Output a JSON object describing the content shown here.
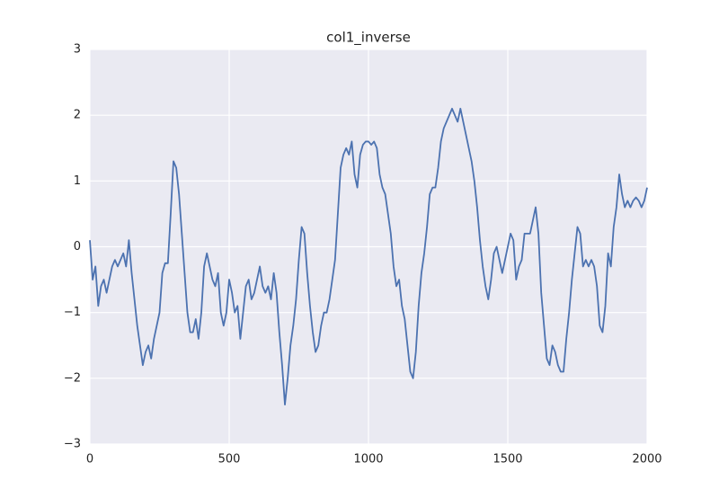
{
  "chart_data": {
    "type": "line",
    "title": "col1_inverse",
    "x": [
      0,
      10,
      20,
      30,
      40,
      50,
      60,
      70,
      80,
      90,
      100,
      110,
      120,
      130,
      140,
      150,
      160,
      170,
      180,
      190,
      200,
      210,
      220,
      230,
      240,
      250,
      260,
      270,
      280,
      290,
      300,
      310,
      320,
      330,
      340,
      350,
      360,
      370,
      380,
      390,
      400,
      410,
      420,
      430,
      440,
      450,
      460,
      470,
      480,
      490,
      500,
      510,
      520,
      530,
      540,
      550,
      560,
      570,
      580,
      590,
      600,
      610,
      620,
      630,
      640,
      650,
      660,
      670,
      680,
      690,
      700,
      710,
      720,
      730,
      740,
      750,
      760,
      770,
      780,
      790,
      800,
      810,
      820,
      830,
      840,
      850,
      860,
      870,
      880,
      890,
      900,
      910,
      920,
      930,
      940,
      950,
      960,
      970,
      980,
      990,
      1000,
      1010,
      1020,
      1030,
      1040,
      1050,
      1060,
      1070,
      1080,
      1090,
      1100,
      1110,
      1120,
      1130,
      1140,
      1150,
      1160,
      1170,
      1180,
      1190,
      1200,
      1210,
      1220,
      1230,
      1240,
      1250,
      1260,
      1270,
      1280,
      1290,
      1300,
      1310,
      1320,
      1330,
      1340,
      1350,
      1360,
      1370,
      1380,
      1390,
      1400,
      1410,
      1420,
      1430,
      1440,
      1450,
      1460,
      1470,
      1480,
      1490,
      1500,
      1510,
      1520,
      1530,
      1540,
      1550,
      1560,
      1570,
      1580,
      1590,
      1600,
      1610,
      1620,
      1630,
      1640,
      1650,
      1660,
      1670,
      1680,
      1690,
      1700,
      1710,
      1720,
      1730,
      1740,
      1750,
      1760,
      1770,
      1780,
      1790,
      1800,
      1810,
      1820,
      1830,
      1840,
      1850,
      1860,
      1870,
      1880,
      1890,
      1900,
      1910,
      1920,
      1930,
      1940,
      1950,
      1960,
      1970,
      1980,
      1990,
      2000
    ],
    "series": [
      {
        "name": "col1_inverse",
        "color": "#4c72b0",
        "values": [
          0.1,
          -0.5,
          -0.3,
          -0.9,
          -0.6,
          -0.5,
          -0.7,
          -0.5,
          -0.3,
          -0.2,
          -0.3,
          -0.2,
          -0.1,
          -0.3,
          0.1,
          -0.4,
          -0.8,
          -1.2,
          -1.5,
          -1.8,
          -1.6,
          -1.5,
          -1.7,
          -1.4,
          -1.2,
          -1.0,
          -0.4,
          -0.25,
          -0.25,
          0.5,
          1.3,
          1.2,
          0.8,
          0.2,
          -0.4,
          -1.0,
          -1.3,
          -1.3,
          -1.1,
          -1.4,
          -1.0,
          -0.3,
          -0.1,
          -0.3,
          -0.5,
          -0.6,
          -0.4,
          -1.0,
          -1.2,
          -1.0,
          -0.5,
          -0.7,
          -1.0,
          -0.9,
          -1.4,
          -1.0,
          -0.6,
          -0.5,
          -0.8,
          -0.7,
          -0.5,
          -0.3,
          -0.6,
          -0.7,
          -0.6,
          -0.8,
          -0.4,
          -0.7,
          -1.3,
          -1.8,
          -2.4,
          -2.0,
          -1.5,
          -1.2,
          -0.8,
          -0.2,
          0.3,
          0.2,
          -0.4,
          -0.9,
          -1.3,
          -1.6,
          -1.5,
          -1.2,
          -1.0,
          -1.0,
          -0.8,
          -0.5,
          -0.2,
          0.5,
          1.2,
          1.4,
          1.5,
          1.4,
          1.6,
          1.1,
          0.9,
          1.4,
          1.55,
          1.6,
          1.6,
          1.55,
          1.6,
          1.5,
          1.1,
          0.9,
          0.8,
          0.5,
          0.2,
          -0.3,
          -0.6,
          -0.5,
          -0.9,
          -1.1,
          -1.5,
          -1.9,
          -2.0,
          -1.6,
          -0.9,
          -0.4,
          -0.1,
          0.3,
          0.8,
          0.9,
          0.9,
          1.2,
          1.6,
          1.8,
          1.9,
          2.0,
          2.1,
          2.0,
          1.9,
          2.1,
          1.9,
          1.7,
          1.5,
          1.3,
          1.0,
          0.6,
          0.1,
          -0.3,
          -0.6,
          -0.8,
          -0.5,
          -0.1,
          0.0,
          -0.2,
          -0.4,
          -0.2,
          0.0,
          0.2,
          0.1,
          -0.5,
          -0.3,
          -0.2,
          0.2,
          0.2,
          0.2,
          0.4,
          0.6,
          0.2,
          -0.7,
          -1.2,
          -1.7,
          -1.8,
          -1.5,
          -1.6,
          -1.8,
          -1.9,
          -1.9,
          -1.4,
          -1.0,
          -0.5,
          -0.1,
          0.3,
          0.2,
          -0.3,
          -0.2,
          -0.3,
          -0.2,
          -0.3,
          -0.6,
          -1.2,
          -1.3,
          -0.9,
          -0.1,
          -0.3,
          0.3,
          0.6,
          1.1,
          0.8,
          0.6,
          0.7,
          0.6,
          0.7,
          0.75,
          0.7,
          0.6,
          0.7,
          0.9
        ]
      }
    ],
    "xlim": [
      0,
      2000
    ],
    "xticks": [
      0,
      500,
      1000,
      1500,
      2000
    ],
    "ylim": [
      -3,
      3
    ],
    "yticks": [
      {
        "value": -3,
        "label": "−3"
      },
      {
        "value": -2,
        "label": "−2"
      },
      {
        "value": -1,
        "label": "−1"
      },
      0,
      1,
      2,
      3
    ],
    "grid": true
  }
}
